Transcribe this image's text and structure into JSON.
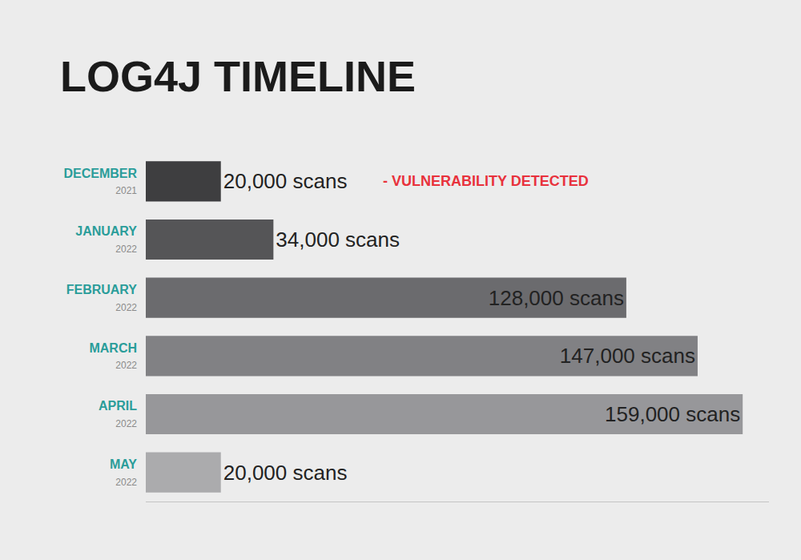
{
  "chart_data": {
    "type": "bar",
    "orientation": "horizontal",
    "title": "LOG4J TIMELINE",
    "categories": [
      "DECEMBER",
      "JANUARY",
      "FEBRUARY",
      "MARCH",
      "APRIL",
      "MAY"
    ],
    "category_years": [
      "2021",
      "2022",
      "2022",
      "2022",
      "2022",
      "2022"
    ],
    "values": [
      20000,
      34000,
      128000,
      147000,
      159000,
      20000
    ],
    "value_labels": [
      "20,000 scans",
      "34,000 scans",
      "128,000 scans",
      "147,000 scans",
      "159,000 scans",
      "20,000 scans"
    ],
    "data_labels": true,
    "colors": [
      "#3e3e40",
      "#555557",
      "#6b6b6e",
      "#818184",
      "#97979a",
      "#ababad"
    ],
    "xlim": [
      0,
      166000
    ],
    "xticks": [],
    "grid": false,
    "tick_labels": "y",
    "annotations": [
      {
        "text": "- VULNERABILITY DETECTED",
        "category": "DECEMBER",
        "color": "#e8323c"
      }
    ]
  }
}
